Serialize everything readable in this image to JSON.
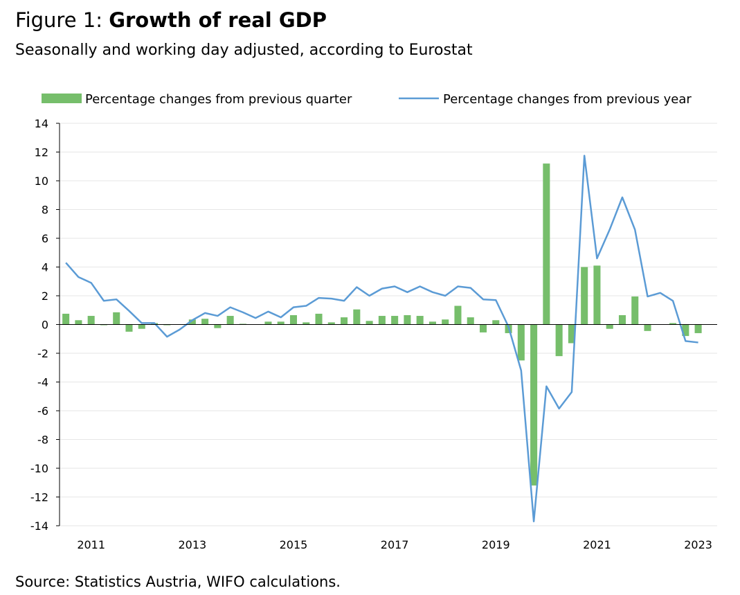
{
  "figure": {
    "title_prefix": "Figure 1: ",
    "title_bold": "Growth of real GDP",
    "subtitle": "Seasonally and working day adjusted, according to Eurostat",
    "source": "Source: Statistics Austria, WIFO calculations."
  },
  "chart_data": {
    "type": "bar",
    "x": [
      "2010Q3",
      "2010Q4",
      "2011Q1",
      "2011Q2",
      "2011Q3",
      "2011Q4",
      "2012Q1",
      "2012Q2",
      "2012Q3",
      "2012Q4",
      "2013Q1",
      "2013Q2",
      "2013Q3",
      "2013Q4",
      "2014Q1",
      "2014Q2",
      "2014Q3",
      "2014Q4",
      "2015Q1",
      "2015Q2",
      "2015Q3",
      "2015Q4",
      "2016Q1",
      "2016Q2",
      "2016Q3",
      "2016Q4",
      "2017Q1",
      "2017Q2",
      "2017Q3",
      "2017Q4",
      "2018Q1",
      "2018Q2",
      "2018Q3",
      "2018Q4",
      "2019Q1",
      "2019Q2",
      "2019Q3",
      "2019Q4",
      "2020Q1",
      "2020Q2",
      "2020Q3",
      "2020Q4",
      "2021Q1",
      "2021Q2",
      "2021Q3",
      "2021Q4",
      "2022Q1",
      "2022Q2",
      "2022Q3",
      "2022Q4",
      "2023Q1",
      "2023Q2"
    ],
    "xtick_labels": [
      "2011",
      "2013",
      "2015",
      "2017",
      "2019",
      "2021",
      "2023"
    ],
    "xtick_index": [
      2,
      10,
      18,
      26,
      34,
      42,
      50
    ],
    "series": [
      {
        "name": "Percentage changes from previous quarter",
        "kind": "bar",
        "color": "#76be6b",
        "values": [
          0.75,
          0.3,
          0.6,
          -0.05,
          0.85,
          -0.5,
          -0.3,
          0.1,
          -0.05,
          0.0,
          0.35,
          0.4,
          -0.25,
          0.6,
          0.05,
          0.0,
          0.2,
          0.2,
          0.65,
          0.15,
          0.75,
          0.15,
          0.5,
          1.05,
          0.25,
          0.6,
          0.6,
          0.65,
          0.6,
          0.2,
          0.35,
          1.3,
          0.5,
          -0.55,
          0.3,
          -0.6,
          -2.5,
          -11.2,
          11.2,
          -2.2,
          -1.3,
          4.0,
          4.1,
          -0.3,
          0.65,
          1.95,
          -0.45,
          0.0,
          0.1,
          -0.8,
          -0.6,
          0.0
        ]
      },
      {
        "name": "Percentage changes from previous year",
        "kind": "line",
        "color": "#5b9bd5",
        "values": [
          4.3,
          3.3,
          2.9,
          1.65,
          1.75,
          0.95,
          0.1,
          0.1,
          -0.85,
          -0.35,
          0.3,
          0.8,
          0.6,
          1.2,
          0.85,
          0.45,
          0.9,
          0.5,
          1.2,
          1.3,
          1.85,
          1.8,
          1.65,
          2.6,
          2.0,
          2.5,
          2.65,
          2.25,
          2.65,
          2.25,
          2.0,
          2.65,
          2.55,
          1.75,
          1.7,
          -0.15,
          -3.2,
          -13.7,
          -4.3,
          -5.85,
          -4.7,
          11.75,
          4.6,
          6.6,
          8.85,
          6.6,
          1.95,
          2.2,
          1.65,
          -1.15,
          -1.25,
          null
        ]
      }
    ],
    "ylim": [
      -14,
      14
    ],
    "yticks": [
      -14,
      -12,
      -10,
      -8,
      -6,
      -4,
      -2,
      0,
      2,
      4,
      6,
      8,
      10,
      12,
      14
    ],
    "grid": true,
    "legend": "top"
  }
}
